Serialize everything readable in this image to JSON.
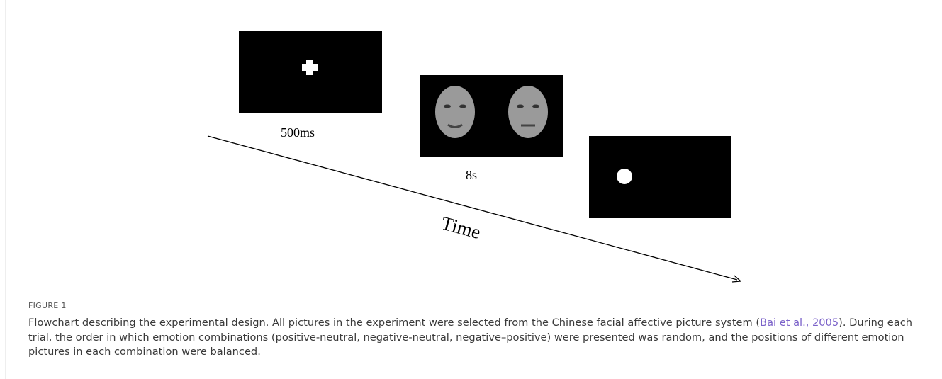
{
  "figure": {
    "labels": {
      "fixation": "500ms",
      "faces": "8s",
      "axis": "Time"
    },
    "caption": {
      "label": "FIGURE 1",
      "text_before": "Flowchart describing the experimental design. All pictures in the experiment were selected from the Chinese facial affective picture system (",
      "citation": "Bai et al., 2005",
      "text_after": "). During each trial, the order in which emotion combinations (positive-neutral, negative-neutral, negative–positive) were presented was random, and the positions of different emotion pictures in each combination were balanced."
    }
  }
}
